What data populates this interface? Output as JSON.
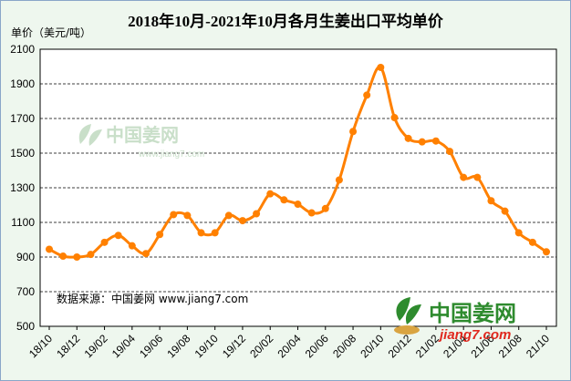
{
  "title": "2018年10月-2021年10月各月生姜出口平均单价",
  "y_unit_label": "单价（美元/吨）",
  "source_note": "数据来源：中国姜网 www.jiang7.com",
  "watermark": {
    "center_cn": "中国姜网",
    "center_url": "www.jiang7.com",
    "logo_cn": "中国姜网",
    "logo_url": "jiang7.com"
  },
  "colors": {
    "line": "#ff8000",
    "plot_bg": "#ffffff",
    "frame_bg": "#eef7ee",
    "grid": "#000000",
    "logo_green": "#2e8b2e",
    "logo_red": "#e0281e",
    "watermark_green": "#c9dfc9"
  },
  "chart_data": {
    "type": "line",
    "title": "2018年10月-2021年10月各月生姜出口平均单价",
    "ylabel": "单价（美元/吨）",
    "xlabel": "",
    "ylim": [
      500,
      2100
    ],
    "yticks": [
      500,
      700,
      900,
      1100,
      1300,
      1500,
      1700,
      1900,
      2100
    ],
    "grid": true,
    "legend": "none",
    "x_tick_labels": [
      "18/10",
      "18/12",
      "19/02",
      "19/04",
      "19/06",
      "19/08",
      "19/10",
      "19/12",
      "20/02",
      "20/04",
      "20/06",
      "20/08",
      "20/10",
      "20/12",
      "21/02",
      "21/04",
      "21/06",
      "21/08",
      "21/10"
    ],
    "x": [
      "18/10",
      "18/11",
      "18/12",
      "19/01",
      "19/02",
      "19/03",
      "19/04",
      "19/05",
      "19/06",
      "19/07",
      "19/08",
      "19/09",
      "19/10",
      "19/11",
      "19/12",
      "20/01",
      "20/02",
      "20/03",
      "20/04",
      "20/05",
      "20/06",
      "20/07",
      "20/08",
      "20/09",
      "20/10",
      "20/11",
      "20/12",
      "21/01",
      "21/02",
      "21/03",
      "21/04",
      "21/05",
      "21/06",
      "21/07",
      "21/08",
      "21/09",
      "21/10"
    ],
    "series": [
      {
        "values": [
          945,
          905,
          900,
          915,
          985,
          1025,
          965,
          920,
          1030,
          1145,
          1140,
          1040,
          1040,
          1140,
          1110,
          1150,
          1265,
          1230,
          1205,
          1155,
          1180,
          1345,
          1625,
          1835,
          1995,
          1705,
          1585,
          1565,
          1570,
          1510,
          1360,
          1360,
          1225,
          1165,
          1040,
          985,
          930
        ]
      }
    ]
  }
}
